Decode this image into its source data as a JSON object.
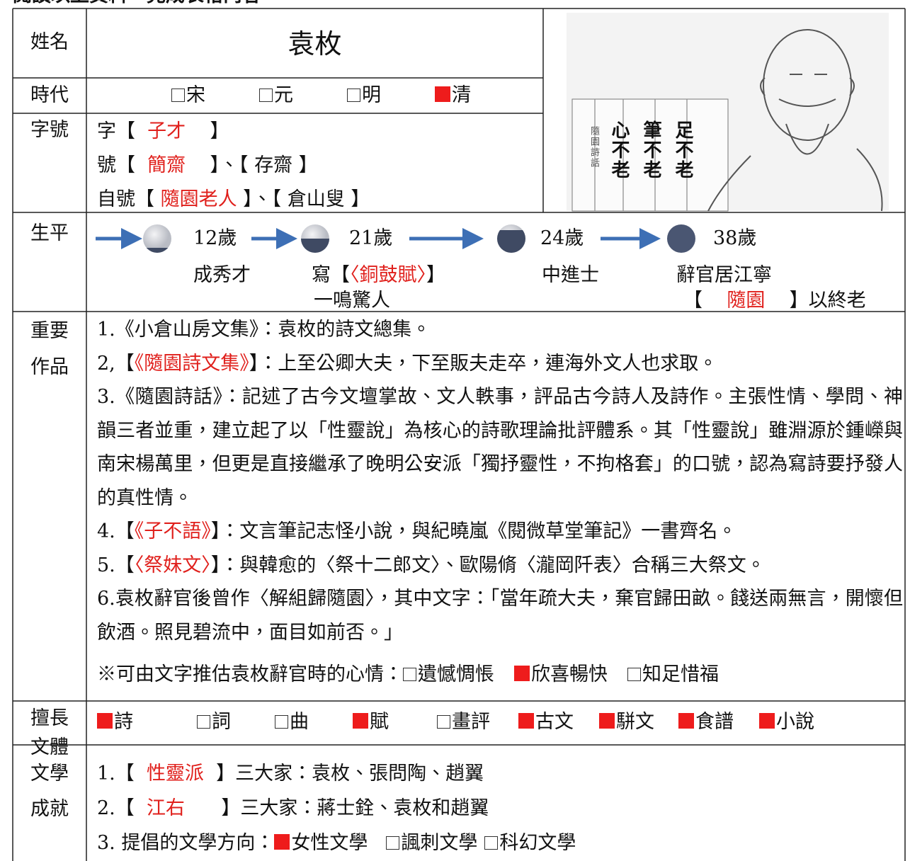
{
  "header": "閱讀以上資料，完成表格內容",
  "table": {
    "name": {
      "label": "姓名",
      "value": "袁枚"
    },
    "era": {
      "label": "時代",
      "options": [
        {
          "text": "宋",
          "checked": false
        },
        {
          "text": "元",
          "checked": false
        },
        {
          "text": "明",
          "checked": false
        },
        {
          "text": "清",
          "checked": true
        }
      ]
    },
    "names": {
      "label": "字號",
      "lines": [
        [
          {
            "t": "字【  "
          },
          {
            "t": "子才",
            "red": true
          },
          {
            "t": "    】"
          }
        ],
        [
          {
            "t": "號【  "
          },
          {
            "t": "簡齋",
            "red": true
          },
          {
            "t": "    】、【 存齋 】"
          }
        ],
        [
          {
            "t": "自號【 "
          },
          {
            "t": "隨園老人",
            "red": true
          },
          {
            "t": " 】、【 倉山叟 】"
          }
        ]
      ]
    },
    "life": {
      "label": "生平",
      "stages": [
        {
          "age": "12歲",
          "event": [
            [
              {
                "t": "成秀才"
              }
            ]
          ]
        },
        {
          "age": "21歲",
          "event": [
            [
              {
                "t": "寫【"
              },
              {
                "t": "〈銅鼓賦〉",
                "red": true
              },
              {
                "t": "】"
              }
            ],
            [
              {
                "t": "一鳴驚人"
              }
            ]
          ]
        },
        {
          "age": "24歲",
          "event": [
            [
              {
                "t": "中進士"
              }
            ]
          ]
        },
        {
          "age": "38歲",
          "event": [
            [
              {
                "t": "辭官居江寧"
              }
            ],
            [
              {
                "t": "【    "
              },
              {
                "t": "隨園",
                "red": true
              },
              {
                "t": "    】以終老"
              }
            ]
          ]
        }
      ]
    },
    "works": {
      "label": [
        "重要",
        "作品"
      ],
      "items": [
        [
          {
            "t": "1.《小倉山房文集》：袁枚的詩文總集。"
          }
        ],
        [
          {
            "t": "2,【"
          },
          {
            "t": "《隨園詩文集》",
            "red": true
          },
          {
            "t": "】：上至公卿大夫，下至販夫走卒，連海外文人也求取。"
          }
        ],
        [
          {
            "t": "3.《隨園詩話》：記述了古今文壇掌故、文人軼事，評品古今詩人及詩作。主張性情、學問、神韻三者並重，建立起了以「性靈說」為核心的詩歌理論批評體系。其「性靈說」雖淵源於鍾嶸與南宋楊萬里，但更是直接繼承了晚明公安派「獨抒靈性，不拘格套」的口號，認為寫詩要抒發人的真性情。"
          }
        ],
        [
          {
            "t": "4.【"
          },
          {
            "t": "《子不語》",
            "red": true
          },
          {
            "t": "】：文言筆記志怪小說，與紀曉嵐《閱微草堂筆記》一書齊名。"
          }
        ],
        [
          {
            "t": "5.【"
          },
          {
            "t": "〈祭妹文〉",
            "red": true
          },
          {
            "t": "】：與韓愈的〈祭十二郎文〉、歐陽脩〈瀧岡阡表〉合稱三大祭文。"
          }
        ],
        [
          {
            "t": "6.袁枚辭官後曾作〈解組歸隨園〉，其中文字：「當年疏大夫，棄官歸田畝。餞送兩無言，開懷但飲酒。照見碧流中，面目如前否。」"
          }
        ]
      ],
      "note": {
        "text": "※可由文字推估袁枚辭官時的心情：",
        "options": [
          {
            "text": "遺憾惆悵",
            "checked": false
          },
          {
            "text": "欣喜暢快",
            "checked": true
          },
          {
            "text": "知足惜福",
            "checked": false
          }
        ]
      }
    },
    "genres": {
      "label": [
        "擅長",
        "文體"
      ],
      "options": [
        {
          "text": "詩",
          "checked": true
        },
        {
          "text": "詞",
          "checked": false
        },
        {
          "text": "曲",
          "checked": false
        },
        {
          "text": "賦",
          "checked": true
        },
        {
          "text": "畫評",
          "checked": false
        },
        {
          "text": "古文",
          "checked": true
        },
        {
          "text": "駢文",
          "checked": true
        },
        {
          "text": "食譜",
          "checked": true
        },
        {
          "text": "小說",
          "checked": true
        }
      ]
    },
    "achievements": {
      "label": [
        "文學",
        "成就"
      ],
      "lines": [
        [
          {
            "t": "1.【  "
          },
          {
            "t": "性靈派",
            "red": true
          },
          {
            "t": "  】三大家：袁枚、張問陶、趙翼"
          }
        ],
        [
          {
            "t": "2.【  "
          },
          {
            "t": "江右",
            "red": true
          },
          {
            "t": "      】三大家：蔣士銓、袁枚和趙翼"
          }
        ]
      ],
      "direction": {
        "text": "3. 提倡的文學方向：",
        "options": [
          {
            "text": "女性文學",
            "checked": true
          },
          {
            "text": "諷刺文學",
            "checked": false
          },
          {
            "text": "科幻文學",
            "checked": false
          }
        ]
      }
    }
  },
  "image": {
    "scrolls": [
      "足不老",
      "筆不老",
      "心不老"
    ],
    "book": "隨園詩話"
  }
}
